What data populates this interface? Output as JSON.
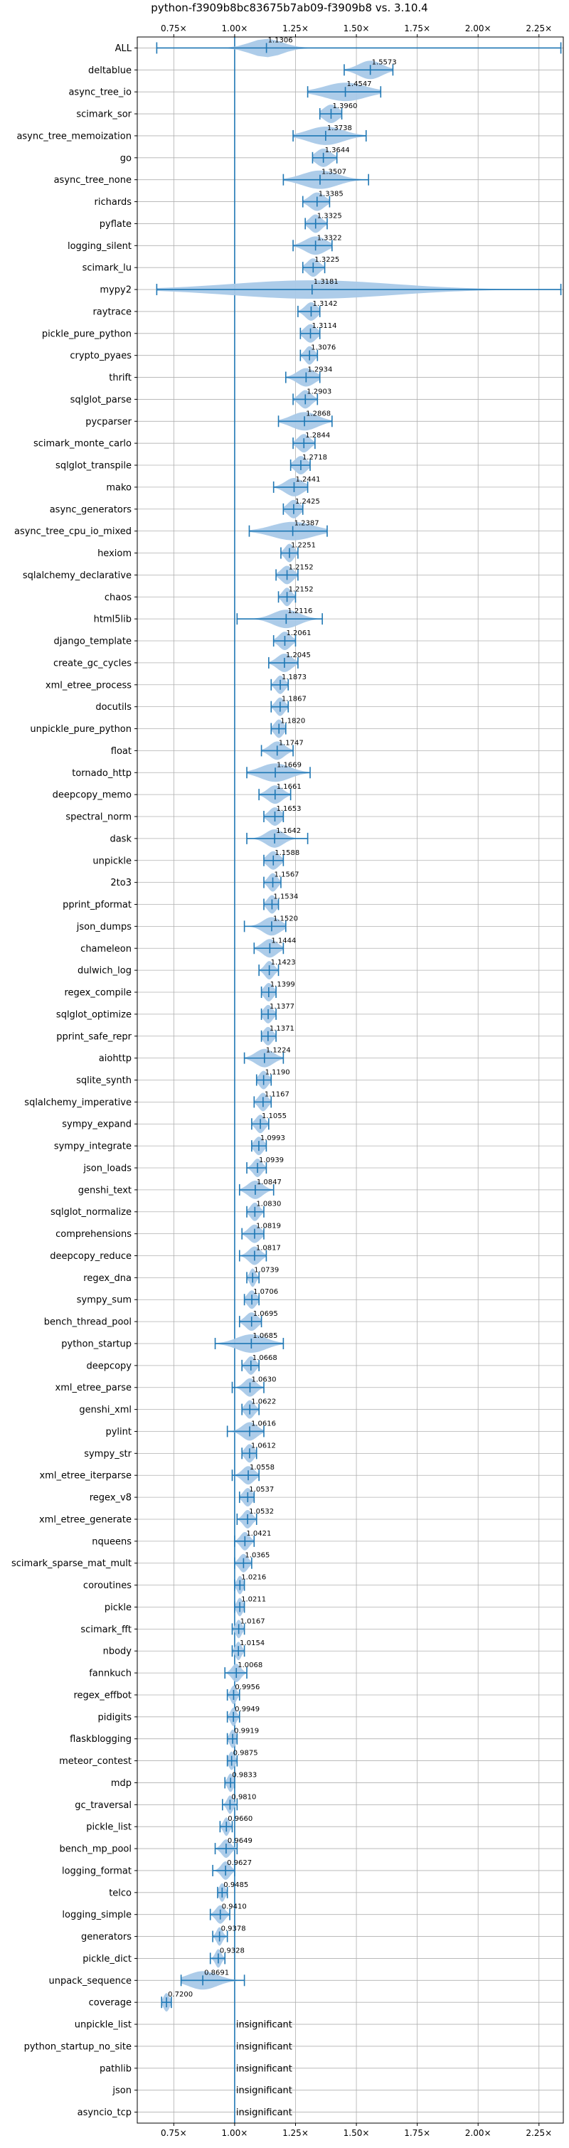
{
  "chart_data": {
    "type": "violin",
    "title": "python-f3909b8bc83675b7ab09-f3909b8 vs. 3.10.4",
    "xlabel": "",
    "ylabel": "",
    "xlim": [
      0.6,
      2.35
    ],
    "xticks": [
      0.75,
      1.0,
      1.25,
      1.5,
      1.75,
      2.0,
      2.25
    ],
    "xtick_labels": [
      "0.75×",
      "1.00×",
      "1.25×",
      "1.50×",
      "1.75×",
      "2.00×",
      "2.25×"
    ],
    "reference_line": 1.0,
    "grid": true,
    "insignificant_text": "insignificant",
    "colors": {
      "violin_fill": "#a9c9e8",
      "error_bar": "#1f77b4",
      "reference_line": "#1f77b4",
      "grid": "#b0b0b0"
    },
    "benchmarks": [
      {
        "name": "ALL",
        "median": 1.1306,
        "label": "1.1306",
        "low": 0.68,
        "high": 2.34,
        "spread": 0.11
      },
      {
        "name": "deltablue",
        "median": 1.5573,
        "label": "1.5573",
        "low": 1.45,
        "high": 1.65,
        "spread": 0.08
      },
      {
        "name": "async_tree_io",
        "median": 1.4547,
        "label": "1.4547",
        "low": 1.3,
        "high": 1.6,
        "spread": 0.14
      },
      {
        "name": "scimark_sor",
        "median": 1.396,
        "label": "1.3960",
        "low": 1.35,
        "high": 1.44,
        "spread": 0.05
      },
      {
        "name": "async_tree_memoization",
        "median": 1.3738,
        "label": "1.3738",
        "low": 1.24,
        "high": 1.54,
        "spread": 0.12
      },
      {
        "name": "go",
        "median": 1.3644,
        "label": "1.3644",
        "low": 1.32,
        "high": 1.42,
        "spread": 0.05
      },
      {
        "name": "async_tree_none",
        "median": 1.3507,
        "label": "1.3507",
        "low": 1.2,
        "high": 1.55,
        "spread": 0.12
      },
      {
        "name": "richards",
        "median": 1.3385,
        "label": "1.3385",
        "low": 1.28,
        "high": 1.39,
        "spread": 0.05
      },
      {
        "name": "pyflate",
        "median": 1.3325,
        "label": "1.3325",
        "low": 1.29,
        "high": 1.38,
        "spread": 0.04
      },
      {
        "name": "logging_silent",
        "median": 1.3322,
        "label": "1.3322",
        "low": 1.24,
        "high": 1.4,
        "spread": 0.07
      },
      {
        "name": "scimark_lu",
        "median": 1.3225,
        "label": "1.3225",
        "low": 1.28,
        "high": 1.37,
        "spread": 0.04
      },
      {
        "name": "mypy2",
        "median": 1.3181,
        "label": "1.3181",
        "low": 0.68,
        "high": 2.34,
        "spread": 0.55
      },
      {
        "name": "raytrace",
        "median": 1.3142,
        "label": "1.3142",
        "low": 1.26,
        "high": 1.35,
        "spread": 0.04
      },
      {
        "name": "pickle_pure_python",
        "median": 1.3114,
        "label": "1.3114",
        "low": 1.27,
        "high": 1.35,
        "spread": 0.04
      },
      {
        "name": "crypto_pyaes",
        "median": 1.3076,
        "label": "1.3076",
        "low": 1.27,
        "high": 1.34,
        "spread": 0.03
      },
      {
        "name": "thrift",
        "median": 1.2934,
        "label": "1.2934",
        "low": 1.21,
        "high": 1.35,
        "spread": 0.06
      },
      {
        "name": "sqlglot_parse",
        "median": 1.2903,
        "label": "1.2903",
        "low": 1.24,
        "high": 1.34,
        "spread": 0.04
      },
      {
        "name": "pycparser",
        "median": 1.2868,
        "label": "1.2868",
        "low": 1.18,
        "high": 1.4,
        "spread": 0.09
      },
      {
        "name": "scimark_monte_carlo",
        "median": 1.2844,
        "label": "1.2844",
        "low": 1.24,
        "high": 1.33,
        "spread": 0.04
      },
      {
        "name": "sqlglot_transpile",
        "median": 1.2718,
        "label": "1.2718",
        "low": 1.23,
        "high": 1.31,
        "spread": 0.04
      },
      {
        "name": "mako",
        "median": 1.2441,
        "label": "1.2441",
        "low": 1.16,
        "high": 1.3,
        "spread": 0.06
      },
      {
        "name": "async_generators",
        "median": 1.2425,
        "label": "1.2425",
        "low": 1.2,
        "high": 1.28,
        "spread": 0.04
      },
      {
        "name": "async_tree_cpu_io_mixed",
        "median": 1.2387,
        "label": "1.2387",
        "low": 1.06,
        "high": 1.38,
        "spread": 0.14
      },
      {
        "name": "hexiom",
        "median": 1.2251,
        "label": "1.2251",
        "low": 1.19,
        "high": 1.26,
        "spread": 0.03
      },
      {
        "name": "sqlalchemy_declarative",
        "median": 1.2152,
        "label": "1.2152",
        "low": 1.17,
        "high": 1.26,
        "spread": 0.04
      },
      {
        "name": "chaos",
        "median": 1.2152,
        "label": "1.2152",
        "low": 1.18,
        "high": 1.25,
        "spread": 0.03
      },
      {
        "name": "html5lib",
        "median": 1.2116,
        "label": "1.2116",
        "low": 1.01,
        "high": 1.36,
        "spread": 0.09
      },
      {
        "name": "django_template",
        "median": 1.2061,
        "label": "1.2061",
        "low": 1.16,
        "high": 1.25,
        "spread": 0.04
      },
      {
        "name": "create_gc_cycles",
        "median": 1.2045,
        "label": "1.2045",
        "low": 1.14,
        "high": 1.26,
        "spread": 0.05
      },
      {
        "name": "xml_etree_process",
        "median": 1.1873,
        "label": "1.1873",
        "low": 1.15,
        "high": 1.22,
        "spread": 0.03
      },
      {
        "name": "docutils",
        "median": 1.1867,
        "label": "1.1867",
        "low": 1.15,
        "high": 1.22,
        "spread": 0.03
      },
      {
        "name": "unpickle_pure_python",
        "median": 1.182,
        "label": "1.1820",
        "low": 1.15,
        "high": 1.21,
        "spread": 0.03
      },
      {
        "name": "float",
        "median": 1.1747,
        "label": "1.1747",
        "low": 1.11,
        "high": 1.24,
        "spread": 0.05
      },
      {
        "name": "tornado_http",
        "median": 1.1669,
        "label": "1.1669",
        "low": 1.05,
        "high": 1.31,
        "spread": 0.1
      },
      {
        "name": "deepcopy_memo",
        "median": 1.1661,
        "label": "1.1661",
        "low": 1.1,
        "high": 1.23,
        "spread": 0.05
      },
      {
        "name": "spectral_norm",
        "median": 1.1653,
        "label": "1.1653",
        "low": 1.12,
        "high": 1.2,
        "spread": 0.04
      },
      {
        "name": "dask",
        "median": 1.1642,
        "label": "1.1642",
        "low": 1.05,
        "high": 1.3,
        "spread": 0.06
      },
      {
        "name": "unpickle",
        "median": 1.1588,
        "label": "1.1588",
        "low": 1.12,
        "high": 1.2,
        "spread": 0.04
      },
      {
        "name": "2to3",
        "median": 1.1567,
        "label": "1.1567",
        "low": 1.12,
        "high": 1.19,
        "spread": 0.03
      },
      {
        "name": "pprint_pformat",
        "median": 1.1534,
        "label": "1.1534",
        "low": 1.12,
        "high": 1.18,
        "spread": 0.03
      },
      {
        "name": "json_dumps",
        "median": 1.152,
        "label": "1.1520",
        "low": 1.04,
        "high": 1.21,
        "spread": 0.06
      },
      {
        "name": "chameleon",
        "median": 1.1444,
        "label": "1.1444",
        "low": 1.08,
        "high": 1.2,
        "spread": 0.05
      },
      {
        "name": "dulwich_log",
        "median": 1.1423,
        "label": "1.1423",
        "low": 1.1,
        "high": 1.18,
        "spread": 0.03
      },
      {
        "name": "regex_compile",
        "median": 1.1399,
        "label": "1.1399",
        "low": 1.11,
        "high": 1.17,
        "spread": 0.03
      },
      {
        "name": "sqlglot_optimize",
        "median": 1.1377,
        "label": "1.1377",
        "low": 1.11,
        "high": 1.17,
        "spread": 0.03
      },
      {
        "name": "pprint_safe_repr",
        "median": 1.1371,
        "label": "1.1371",
        "low": 1.11,
        "high": 1.17,
        "spread": 0.03
      },
      {
        "name": "aiohttp",
        "median": 1.1224,
        "label": "1.1224",
        "low": 1.04,
        "high": 1.2,
        "spread": 0.06
      },
      {
        "name": "sqlite_synth",
        "median": 1.119,
        "label": "1.1190",
        "low": 1.09,
        "high": 1.15,
        "spread": 0.03
      },
      {
        "name": "sqlalchemy_imperative",
        "median": 1.1167,
        "label": "1.1167",
        "low": 1.08,
        "high": 1.15,
        "spread": 0.03
      },
      {
        "name": "sympy_expand",
        "median": 1.1055,
        "label": "1.1055",
        "low": 1.07,
        "high": 1.14,
        "spread": 0.03
      },
      {
        "name": "sympy_integrate",
        "median": 1.0993,
        "label": "1.0993",
        "low": 1.07,
        "high": 1.13,
        "spread": 0.03
      },
      {
        "name": "json_loads",
        "median": 1.0939,
        "label": "1.0939",
        "low": 1.05,
        "high": 1.13,
        "spread": 0.03
      },
      {
        "name": "genshi_text",
        "median": 1.0847,
        "label": "1.0847",
        "low": 1.02,
        "high": 1.16,
        "spread": 0.05
      },
      {
        "name": "sqlglot_normalize",
        "median": 1.083,
        "label": "1.0830",
        "low": 1.05,
        "high": 1.12,
        "spread": 0.03
      },
      {
        "name": "comprehensions",
        "median": 1.0819,
        "label": "1.0819",
        "low": 1.03,
        "high": 1.12,
        "spread": 0.04
      },
      {
        "name": "deepcopy_reduce",
        "median": 1.0817,
        "label": "1.0817",
        "low": 1.02,
        "high": 1.13,
        "spread": 0.04
      },
      {
        "name": "regex_dna",
        "median": 1.0739,
        "label": "1.0739",
        "low": 1.05,
        "high": 1.1,
        "spread": 0.02
      },
      {
        "name": "sympy_sum",
        "median": 1.0706,
        "label": "1.0706",
        "low": 1.04,
        "high": 1.1,
        "spread": 0.03
      },
      {
        "name": "bench_thread_pool",
        "median": 1.0695,
        "label": "1.0695",
        "low": 1.02,
        "high": 1.11,
        "spread": 0.04
      },
      {
        "name": "python_startup",
        "median": 1.0685,
        "label": "1.0685",
        "low": 0.92,
        "high": 1.2,
        "spread": 0.1
      },
      {
        "name": "deepcopy",
        "median": 1.0668,
        "label": "1.0668",
        "low": 1.03,
        "high": 1.1,
        "spread": 0.03
      },
      {
        "name": "xml_etree_parse",
        "median": 1.063,
        "label": "1.0630",
        "low": 0.99,
        "high": 1.12,
        "spread": 0.04
      },
      {
        "name": "genshi_xml",
        "median": 1.0622,
        "label": "1.0622",
        "low": 1.03,
        "high": 1.1,
        "spread": 0.03
      },
      {
        "name": "pylint",
        "median": 1.0616,
        "label": "1.0616",
        "low": 0.97,
        "high": 1.12,
        "spread": 0.05
      },
      {
        "name": "sympy_str",
        "median": 1.0612,
        "label": "1.0612",
        "low": 1.03,
        "high": 1.09,
        "spread": 0.03
      },
      {
        "name": "xml_etree_iterparse",
        "median": 1.0558,
        "label": "1.0558",
        "low": 0.99,
        "high": 1.1,
        "spread": 0.04
      },
      {
        "name": "regex_v8",
        "median": 1.0537,
        "label": "1.0537",
        "low": 1.02,
        "high": 1.08,
        "spread": 0.03
      },
      {
        "name": "xml_etree_generate",
        "median": 1.0532,
        "label": "1.0532",
        "low": 1.01,
        "high": 1.09,
        "spread": 0.03
      },
      {
        "name": "nqueens",
        "median": 1.0421,
        "label": "1.0421",
        "low": 1.0,
        "high": 1.08,
        "spread": 0.03
      },
      {
        "name": "scimark_sparse_mat_mult",
        "median": 1.0365,
        "label": "1.0365",
        "low": 1.0,
        "high": 1.07,
        "spread": 0.03
      },
      {
        "name": "coroutines",
        "median": 1.0216,
        "label": "1.0216",
        "low": 1.0,
        "high": 1.04,
        "spread": 0.02
      },
      {
        "name": "pickle",
        "median": 1.0211,
        "label": "1.0211",
        "low": 1.0,
        "high": 1.04,
        "spread": 0.02
      },
      {
        "name": "scimark_fft",
        "median": 1.0167,
        "label": "1.0167",
        "low": 0.99,
        "high": 1.04,
        "spread": 0.02
      },
      {
        "name": "nbody",
        "median": 1.0154,
        "label": "1.0154",
        "low": 0.99,
        "high": 1.04,
        "spread": 0.02
      },
      {
        "name": "fannkuch",
        "median": 1.0068,
        "label": "1.0068",
        "low": 0.96,
        "high": 1.05,
        "spread": 0.03
      },
      {
        "name": "regex_effbot",
        "median": 0.9956,
        "label": "0.9956",
        "low": 0.97,
        "high": 1.02,
        "spread": 0.02
      },
      {
        "name": "pidigits",
        "median": 0.9949,
        "label": "0.9949",
        "low": 0.97,
        "high": 1.02,
        "spread": 0.02
      },
      {
        "name": "flaskblogging",
        "median": 0.9919,
        "label": "0.9919",
        "low": 0.97,
        "high": 1.01,
        "spread": 0.02
      },
      {
        "name": "meteor_contest",
        "median": 0.9875,
        "label": "0.9875",
        "low": 0.97,
        "high": 1.01,
        "spread": 0.02
      },
      {
        "name": "mdp",
        "median": 0.9833,
        "label": "0.9833",
        "low": 0.96,
        "high": 1.0,
        "spread": 0.02
      },
      {
        "name": "gc_traversal",
        "median": 0.981,
        "label": "0.9810",
        "low": 0.95,
        "high": 1.01,
        "spread": 0.02
      },
      {
        "name": "pickle_list",
        "median": 0.966,
        "label": "0.9660",
        "low": 0.94,
        "high": 0.99,
        "spread": 0.02
      },
      {
        "name": "bench_mp_pool",
        "median": 0.9649,
        "label": "0.9649",
        "low": 0.92,
        "high": 1.01,
        "spread": 0.03
      },
      {
        "name": "logging_format",
        "median": 0.9627,
        "label": "0.9627",
        "low": 0.91,
        "high": 1.0,
        "spread": 0.03
      },
      {
        "name": "telco",
        "median": 0.9485,
        "label": "0.9485",
        "low": 0.93,
        "high": 0.97,
        "spread": 0.02
      },
      {
        "name": "logging_simple",
        "median": 0.941,
        "label": "0.9410",
        "low": 0.9,
        "high": 0.98,
        "spread": 0.03
      },
      {
        "name": "generators",
        "median": 0.9378,
        "label": "0.9378",
        "low": 0.91,
        "high": 0.97,
        "spread": 0.02
      },
      {
        "name": "pickle_dict",
        "median": 0.9328,
        "label": "0.9328",
        "low": 0.9,
        "high": 0.96,
        "spread": 0.02
      },
      {
        "name": "unpack_sequence",
        "median": 0.8691,
        "label": "0.8691",
        "low": 0.78,
        "high": 1.04,
        "spread": 0.1
      },
      {
        "name": "coverage",
        "median": 0.72,
        "label": "0.7200",
        "low": 0.7,
        "high": 0.74,
        "spread": 0.02
      },
      {
        "name": "unpickle_list",
        "median": null,
        "label": "",
        "insignificant": true
      },
      {
        "name": "python_startup_no_site",
        "median": null,
        "label": "",
        "insignificant": true
      },
      {
        "name": "pathlib",
        "median": null,
        "label": "",
        "insignificant": true
      },
      {
        "name": "json",
        "median": null,
        "label": "",
        "insignificant": true
      },
      {
        "name": "asyncio_tcp",
        "median": null,
        "label": "",
        "insignificant": true
      }
    ]
  }
}
